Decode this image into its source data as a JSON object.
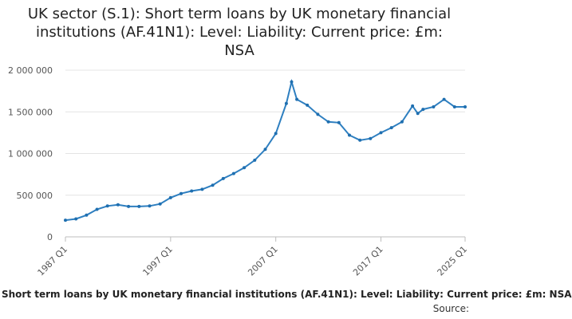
{
  "chart_data": {
    "type": "line",
    "title": "UK sector (S.1): Short term loans by UK monetary financial\ninstitutions (AF.41N1): Level: Liability: Current price: £m:\nNSA",
    "xlabel": "",
    "ylabel": "",
    "ylim": [
      0,
      2000000
    ],
    "y_ticks": [
      {
        "value": 0,
        "label": "0"
      },
      {
        "value": 500000,
        "label": "500 000"
      },
      {
        "value": 1000000,
        "label": "1 000 000"
      },
      {
        "value": 1500000,
        "label": "1 500 000"
      },
      {
        "value": 2000000,
        "label": "2 000 000"
      }
    ],
    "x_ticks": [
      "1987 Q1",
      "1997 Q1",
      "2007 Q1",
      "2017 Q1",
      "2025 Q1"
    ],
    "grid": "horizontal",
    "legend": "none",
    "series": [
      {
        "name": "Short term loans by UK monetary financial institutions (AF.41N1): Level: Liability: Current price: £m: NSA",
        "color": "#2e7fc0",
        "x": [
          "1987 Q1",
          "1988 Q1",
          "1989 Q1",
          "1990 Q1",
          "1991 Q1",
          "1992 Q1",
          "1993 Q1",
          "1994 Q1",
          "1995 Q1",
          "1996 Q1",
          "1997 Q1",
          "1998 Q1",
          "1999 Q1",
          "2000 Q1",
          "2001 Q1",
          "2002 Q1",
          "2003 Q1",
          "2004 Q1",
          "2005 Q1",
          "2006 Q1",
          "2007 Q1",
          "2008 Q1",
          "2008 Q3",
          "2009 Q1",
          "2010 Q1",
          "2011 Q1",
          "2012 Q1",
          "2013 Q1",
          "2014 Q1",
          "2015 Q1",
          "2016 Q1",
          "2017 Q1",
          "2018 Q1",
          "2019 Q1",
          "2020 Q1",
          "2020 Q3",
          "2021 Q1",
          "2022 Q1",
          "2023 Q1",
          "2024 Q1",
          "2025 Q1"
        ],
        "values": [
          200000,
          215000,
          260000,
          330000,
          370000,
          385000,
          365000,
          365000,
          370000,
          395000,
          470000,
          520000,
          550000,
          570000,
          620000,
          700000,
          760000,
          830000,
          920000,
          1050000,
          1240000,
          1600000,
          1860000,
          1650000,
          1580000,
          1470000,
          1380000,
          1370000,
          1220000,
          1160000,
          1180000,
          1250000,
          1310000,
          1380000,
          1570000,
          1480000,
          1530000,
          1560000,
          1650000,
          1560000,
          1560000
        ]
      }
    ]
  },
  "caption": "Short term loans by UK monetary financial institutions (AF.41N1): Level: Liability: Current price: £m: NSA",
  "source_label": "Source:"
}
